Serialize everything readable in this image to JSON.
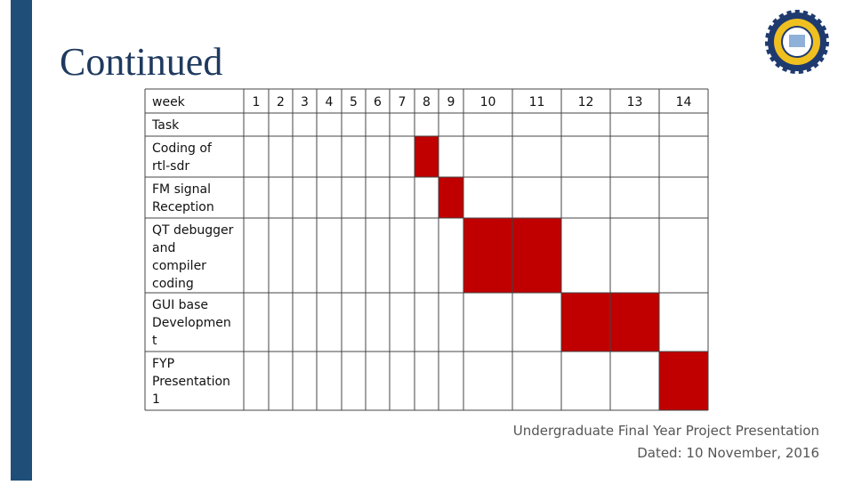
{
  "header": {
    "title": "Continued"
  },
  "table": {
    "header_label": "week",
    "weeks": [
      1,
      2,
      3,
      4,
      5,
      6,
      7,
      8,
      9,
      10,
      11,
      12,
      13,
      14
    ],
    "highlight_color": "#c00000",
    "rows": [
      {
        "task": [
          "Task"
        ],
        "active": [
          false,
          false,
          false,
          false,
          false,
          false,
          false,
          false,
          false,
          false,
          false,
          false,
          false,
          false
        ]
      },
      {
        "task": [
          "Coding of",
          "rtl-sdr"
        ],
        "active": [
          false,
          false,
          false,
          false,
          false,
          false,
          false,
          true,
          false,
          false,
          false,
          false,
          false,
          false
        ]
      },
      {
        "task": [
          "FM signal",
          "Reception"
        ],
        "active": [
          false,
          false,
          false,
          false,
          false,
          false,
          false,
          false,
          true,
          false,
          false,
          false,
          false,
          false
        ]
      },
      {
        "task": [
          "QT debugger",
          "and",
          "compiler",
          "coding"
        ],
        "active": [
          false,
          false,
          false,
          false,
          false,
          false,
          false,
          false,
          false,
          true,
          true,
          false,
          false,
          false
        ]
      },
      {
        "task": [
          "GUI base",
          "Developmen",
          "t"
        ],
        "active": [
          false,
          false,
          false,
          false,
          false,
          false,
          false,
          false,
          false,
          false,
          false,
          true,
          true,
          false
        ]
      },
      {
        "task": [
          "FYP",
          "Presentation",
          "1"
        ],
        "active": [
          false,
          false,
          false,
          false,
          false,
          false,
          false,
          false,
          false,
          false,
          false,
          false,
          false,
          true
        ]
      }
    ]
  },
  "footer": {
    "line1": "Undergraduate Final Year Project Presentation",
    "line2": "Dated: 10 November, 2016"
  }
}
